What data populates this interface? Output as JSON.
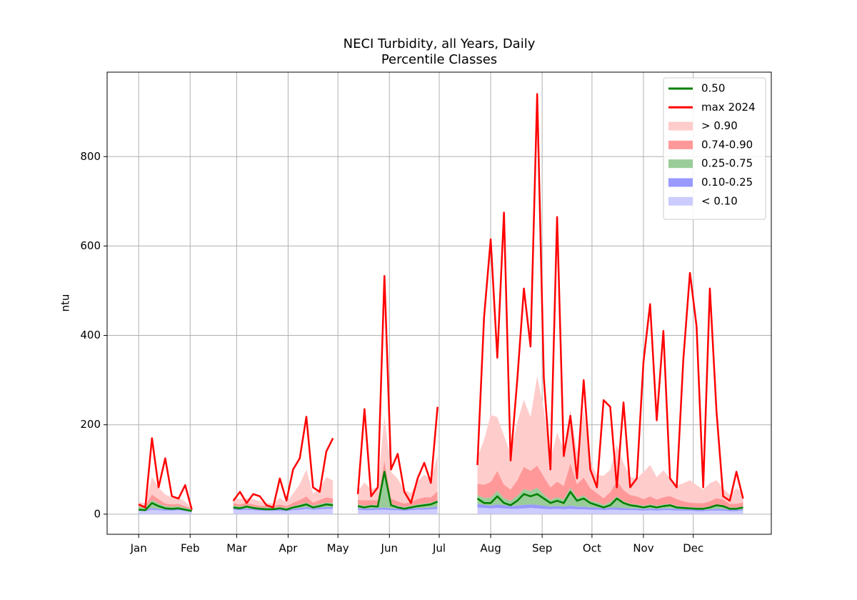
{
  "chart_data": {
    "type": "line",
    "title": "NECI Turbidity, all Years, Daily",
    "subtitle": "Percentile Classes",
    "y_label": "ntu",
    "xlim": [
      -18,
      382
    ],
    "ylim": [
      -45,
      989
    ],
    "xticks": [
      {
        "value": 1,
        "label": "Jan"
      },
      {
        "value": 32,
        "label": "Feb"
      },
      {
        "value": 60,
        "label": "Mar"
      },
      {
        "value": 91,
        "label": "Apr"
      },
      {
        "value": 121,
        "label": "May"
      },
      {
        "value": 152,
        "label": "Jun"
      },
      {
        "value": 182,
        "label": "Jul"
      },
      {
        "value": 213,
        "label": "Aug"
      },
      {
        "value": 244,
        "label": "Sep"
      },
      {
        "value": 274,
        "label": "Oct"
      },
      {
        "value": 305,
        "label": "Nov"
      },
      {
        "value": 335,
        "label": "Dec"
      }
    ],
    "yticks": [
      0,
      200,
      400,
      600,
      800
    ],
    "grid": true,
    "legend": "upper right",
    "x": [
      1,
      5,
      9,
      13,
      17,
      21,
      25,
      29,
      33,
      45,
      58,
      62,
      66,
      70,
      74,
      78,
      82,
      86,
      90,
      94,
      98,
      102,
      106,
      110,
      114,
      118,
      126,
      133,
      137,
      141,
      145,
      149,
      153,
      157,
      161,
      165,
      169,
      173,
      177,
      181,
      193,
      205,
      209,
      213,
      217,
      221,
      225,
      229,
      233,
      237,
      241,
      245,
      249,
      253,
      257,
      261,
      265,
      269,
      273,
      277,
      281,
      285,
      289,
      293,
      297,
      301,
      305,
      309,
      313,
      317,
      321,
      325,
      329,
      333,
      337,
      341,
      345,
      349,
      353,
      357,
      361,
      365
    ],
    "series": [
      {
        "name": "0.50",
        "kind": "line",
        "color": "#008000",
        "values": [
          10,
          9,
          25,
          18,
          13,
          12,
          13,
          10,
          7,
          null,
          15,
          13,
          17,
          14,
          12,
          11,
          11,
          13,
          10,
          15,
          18,
          22,
          15,
          18,
          22,
          20,
          null,
          18,
          15,
          18,
          17,
          95,
          20,
          15,
          12,
          15,
          18,
          20,
          22,
          28,
          null,
          35,
          25,
          25,
          40,
          25,
          20,
          30,
          45,
          40,
          45,
          35,
          25,
          30,
          25,
          50,
          30,
          35,
          25,
          20,
          15,
          20,
          35,
          25,
          20,
          18,
          15,
          18,
          15,
          18,
          20,
          15,
          14,
          13,
          12,
          12,
          15,
          20,
          18,
          12,
          12,
          15
        ]
      },
      {
        "name": "max 2024",
        "kind": "line",
        "color": "#ff0000",
        "values": [
          22,
          15,
          170,
          60,
          125,
          40,
          35,
          65,
          10,
          null,
          30,
          50,
          25,
          45,
          40,
          20,
          15,
          80,
          30,
          100,
          125,
          218,
          60,
          50,
          140,
          170,
          null,
          45,
          235,
          40,
          60,
          533,
          100,
          135,
          50,
          25,
          80,
          115,
          70,
          240,
          null,
          110,
          440,
          615,
          350,
          675,
          120,
          300,
          505,
          375,
          940,
          305,
          100,
          665,
          130,
          220,
          80,
          300,
          100,
          60,
          255,
          240,
          60,
          250,
          60,
          80,
          340,
          470,
          210,
          410,
          80,
          60,
          345,
          540,
          420,
          60,
          505,
          230,
          40,
          30,
          95,
          35
        ]
      },
      {
        "name": "> 0.90",
        "kind": "band",
        "color": "#ffcccc",
        "values": [
          6,
          5,
          40,
          25,
          20,
          15,
          15,
          10,
          2,
          null,
          10,
          12,
          10,
          12,
          10,
          6,
          5,
          15,
          8,
          20,
          35,
          60,
          20,
          25,
          45,
          40,
          null,
          20,
          40,
          25,
          30,
          100,
          60,
          50,
          30,
          20,
          40,
          50,
          40,
          80,
          null,
          60,
          100,
          150,
          120,
          110,
          80,
          130,
          150,
          120,
          200,
          150,
          60,
          110,
          80,
          120,
          70,
          150,
          60,
          40,
          50,
          50,
          80,
          60,
          40,
          40,
          60,
          70,
          50,
          60,
          40,
          30,
          40,
          50,
          40,
          30,
          40,
          40,
          25,
          20,
          35,
          20
        ]
      },
      {
        "name": "0.74-0.90",
        "kind": "band",
        "color": "#ff9999",
        "values": [
          5,
          4,
          12,
          10,
          6,
          5,
          5,
          4,
          2,
          null,
          6,
          5,
          6,
          5,
          4,
          4,
          4,
          6,
          4,
          8,
          10,
          14,
          7,
          9,
          12,
          10,
          null,
          10,
          12,
          10,
          10,
          25,
          12,
          10,
          8,
          8,
          12,
          14,
          12,
          20,
          null,
          25,
          30,
          35,
          45,
          30,
          25,
          35,
          50,
          45,
          50,
          40,
          28,
          35,
          30,
          55,
          30,
          40,
          28,
          20,
          15,
          22,
          35,
          25,
          20,
          18,
          15,
          18,
          14,
          16,
          18,
          15,
          12,
          10,
          10,
          10,
          12,
          15,
          13,
          8,
          8,
          10
        ]
      },
      {
        "name": "0.25-0.75",
        "kind": "band",
        "color": "#99cc99",
        "values": [
          6,
          5,
          18,
          12,
          7,
          6,
          6,
          4,
          3,
          null,
          6,
          5,
          7,
          5,
          4,
          4,
          4,
          5,
          4,
          6,
          8,
          10,
          6,
          8,
          10,
          9,
          null,
          8,
          6,
          8,
          7,
          80,
          10,
          6,
          5,
          6,
          8,
          10,
          11,
          14,
          null,
          20,
          15,
          18,
          30,
          16,
          12,
          22,
          35,
          30,
          38,
          25,
          15,
          20,
          16,
          40,
          20,
          25,
          15,
          12,
          8,
          12,
          25,
          15,
          10,
          9,
          7,
          9,
          7,
          9,
          10,
          7,
          6,
          5,
          5,
          5,
          6,
          9,
          8,
          5,
          5,
          6
        ]
      },
      {
        "name": "0.10-0.25",
        "kind": "band",
        "color": "#9999ff",
        "values": [
          3,
          3,
          4,
          3,
          3,
          3,
          3,
          3,
          2,
          null,
          3,
          3,
          3,
          3,
          3,
          3,
          3,
          3,
          3,
          3,
          4,
          4,
          3,
          4,
          4,
          4,
          null,
          4,
          4,
          4,
          4,
          5,
          4,
          4,
          3,
          4,
          4,
          4,
          4,
          5,
          null,
          8,
          7,
          6,
          8,
          7,
          6,
          7,
          8,
          8,
          8,
          7,
          6,
          6,
          6,
          7,
          6,
          6,
          5,
          5,
          4,
          5,
          5,
          5,
          4,
          4,
          4,
          4,
          4,
          4,
          4,
          4,
          3,
          3,
          3,
          3,
          3,
          4,
          4,
          3,
          3,
          3
        ]
      },
      {
        "name": "< 0.10",
        "kind": "band",
        "color": "#ccccff",
        "values": [
          8,
          7,
          10,
          9,
          8,
          8,
          9,
          7,
          6,
          null,
          10,
          9,
          10,
          9,
          8,
          8,
          8,
          8,
          7,
          9,
          10,
          12,
          10,
          11,
          12,
          12,
          null,
          10,
          9,
          9,
          10,
          10,
          9,
          9,
          8,
          9,
          10,
          10,
          11,
          12,
          null,
          15,
          14,
          13,
          14,
          13,
          12,
          12,
          13,
          14,
          13,
          12,
          11,
          12,
          11,
          12,
          11,
          11,
          10,
          10,
          9,
          10,
          10,
          9,
          9,
          9,
          8,
          9,
          8,
          9,
          9,
          8,
          8,
          8,
          7,
          7,
          8,
          8,
          8,
          7,
          7,
          8
        ]
      }
    ]
  }
}
